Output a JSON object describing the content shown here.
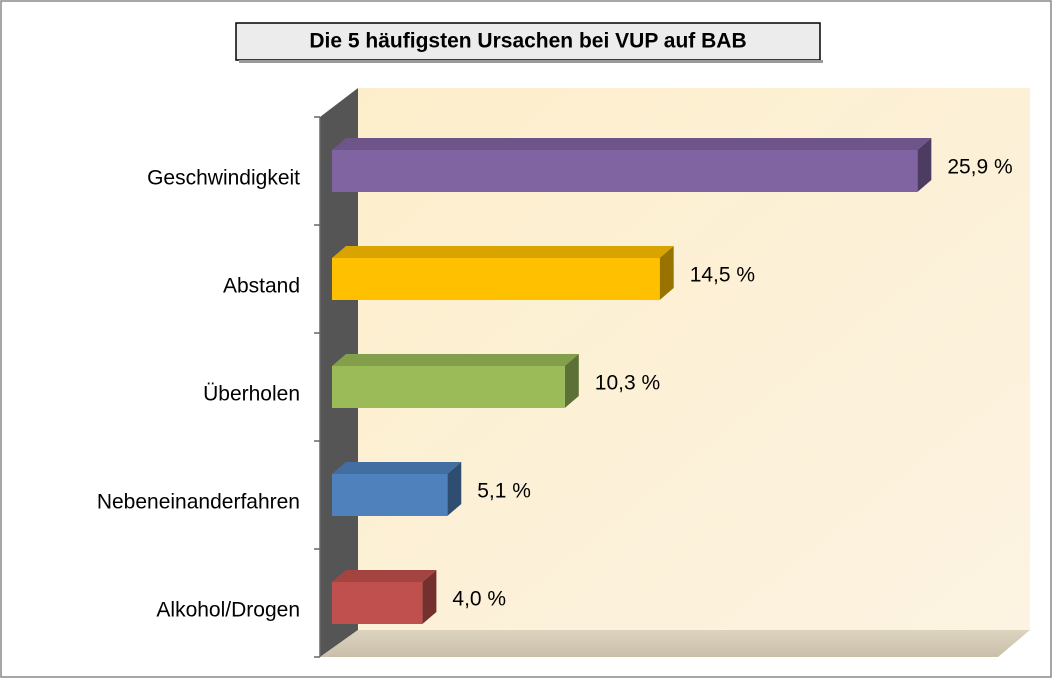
{
  "chart_data": {
    "type": "bar",
    "orientation": "horizontal",
    "title": "Die 5 häufigsten Ursachen bei VUP auf BAB",
    "categories": [
      "Geschwindigkeit",
      "Abstand",
      "Überholen",
      "Nebeneinanderfahren",
      "Alkohol/Drogen"
    ],
    "values": [
      25.9,
      14.5,
      10.3,
      5.1,
      4.0
    ],
    "value_labels": [
      "25,9 %",
      "14,5 %",
      "10,3 %",
      "5,1 %",
      "4,0 %"
    ],
    "colors": [
      "#8064a2",
      "#ffc000",
      "#9bbb59",
      "#4f81bd",
      "#c0504d"
    ],
    "xlim": [
      0,
      30
    ]
  }
}
